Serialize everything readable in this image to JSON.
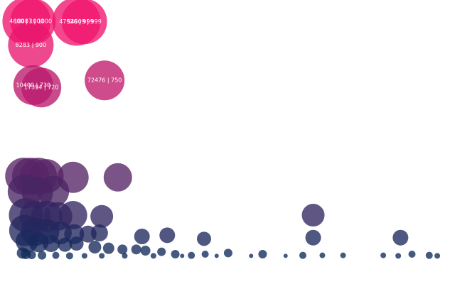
{
  "chart_data": {
    "type": "scatter",
    "title": "",
    "xlabel": "",
    "ylabel": "",
    "xlim": [
      0,
      370000
    ],
    "ylim": [
      0,
      1030
    ],
    "grid": false,
    "legend": "none",
    "color_scale": {
      "low": "#0c2a5a",
      "mid": "#5a2466",
      "high": "#f0156e"
    },
    "labeled_points": [
      {
        "x": 4600,
        "y": 1000,
        "label": "4600 | 1000",
        "size": 34
      },
      {
        "x": 10087,
        "y": 1000,
        "label": "10087 | 1000",
        "size": 32
      },
      {
        "x": 47926,
        "y": 999,
        "label": "47926 | 999",
        "size": 34
      },
      {
        "x": 54809,
        "y": 999,
        "label": "54809 | 999",
        "size": 32
      },
      {
        "x": 8283,
        "y": 900,
        "label": "8283 | 900",
        "size": 32
      },
      {
        "x": 10400,
        "y": 730,
        "label": "10400 | 730",
        "size": 28
      },
      {
        "x": 17394,
        "y": 720,
        "label": "17394 | 720",
        "size": 28
      },
      {
        "x": 72476,
        "y": 750,
        "label": "72476 | 750",
        "size": 28
      }
    ],
    "points": [
      {
        "x": 2000,
        "y": 345,
        "size": 26
      },
      {
        "x": 8000,
        "y": 345,
        "size": 26
      },
      {
        "x": 15000,
        "y": 345,
        "size": 26
      },
      {
        "x": 22000,
        "y": 345,
        "size": 24
      },
      {
        "x": 45000,
        "y": 340,
        "size": 22
      },
      {
        "x": 84000,
        "y": 340,
        "size": 20
      },
      {
        "x": 3000,
        "y": 280,
        "size": 24
      },
      {
        "x": 14000,
        "y": 275,
        "size": 22
      },
      {
        "x": 28000,
        "y": 280,
        "size": 22
      },
      {
        "x": 4000,
        "y": 180,
        "size": 24
      },
      {
        "x": 12000,
        "y": 175,
        "size": 22
      },
      {
        "x": 22000,
        "y": 175,
        "size": 22
      },
      {
        "x": 32000,
        "y": 175,
        "size": 20
      },
      {
        "x": 45000,
        "y": 180,
        "size": 20
      },
      {
        "x": 70000,
        "y": 175,
        "size": 16
      },
      {
        "x": 254000,
        "y": 180,
        "size": 16
      },
      {
        "x": 3000,
        "y": 115,
        "size": 22
      },
      {
        "x": 12000,
        "y": 110,
        "size": 20
      },
      {
        "x": 22000,
        "y": 110,
        "size": 18
      },
      {
        "x": 34000,
        "y": 105,
        "size": 16
      },
      {
        "x": 46000,
        "y": 100,
        "size": 14
      },
      {
        "x": 58000,
        "y": 100,
        "size": 12
      },
      {
        "x": 68000,
        "y": 105,
        "size": 12
      },
      {
        "x": 105000,
        "y": 90,
        "size": 11
      },
      {
        "x": 127000,
        "y": 95,
        "size": 11
      },
      {
        "x": 159000,
        "y": 80,
        "size": 10
      },
      {
        "x": 254000,
        "y": 85,
        "size": 11
      },
      {
        "x": 330000,
        "y": 85,
        "size": 11
      },
      {
        "x": 5000,
        "y": 70,
        "size": 16
      },
      {
        "x": 15000,
        "y": 65,
        "size": 14
      },
      {
        "x": 26000,
        "y": 60,
        "size": 12
      },
      {
        "x": 38000,
        "y": 55,
        "size": 10
      },
      {
        "x": 48000,
        "y": 60,
        "size": 10
      },
      {
        "x": 64000,
        "y": 45,
        "size": 9
      },
      {
        "x": 76000,
        "y": 40,
        "size": 8
      },
      {
        "x": 88000,
        "y": 35,
        "size": 7
      },
      {
        "x": 100000,
        "y": 35,
        "size": 7
      },
      {
        "x": 108000,
        "y": 30,
        "size": 7
      },
      {
        "x": 122000,
        "y": 25,
        "size": 6
      },
      {
        "x": 134000,
        "y": 15,
        "size": 6
      },
      {
        "x": 148000,
        "y": 10,
        "size": 5
      },
      {
        "x": 160000,
        "y": 15,
        "size": 5
      },
      {
        "x": 180000,
        "y": 20,
        "size": 6
      },
      {
        "x": 210000,
        "y": 15,
        "size": 6
      },
      {
        "x": 245000,
        "y": 10,
        "size": 5
      },
      {
        "x": 262000,
        "y": 10,
        "size": 4
      },
      {
        "x": 280000,
        "y": 10,
        "size": 4
      },
      {
        "x": 315000,
        "y": 10,
        "size": 4
      },
      {
        "x": 328000,
        "y": 8,
        "size": 4
      },
      {
        "x": 340000,
        "y": 15,
        "size": 5
      },
      {
        "x": 355000,
        "y": 10,
        "size": 5
      },
      {
        "x": 362000,
        "y": 8,
        "size": 4
      },
      {
        "x": 1000,
        "y": 20,
        "size": 8
      },
      {
        "x": 4000,
        "y": 15,
        "size": 7
      },
      {
        "x": 9000,
        "y": 12,
        "size": 6
      },
      {
        "x": 18000,
        "y": 10,
        "size": 6
      },
      {
        "x": 30000,
        "y": 10,
        "size": 5
      },
      {
        "x": 42000,
        "y": 8,
        "size": 5
      },
      {
        "x": 55000,
        "y": 8,
        "size": 4
      },
      {
        "x": 70000,
        "y": 8,
        "size": 4
      },
      {
        "x": 90000,
        "y": 8,
        "size": 4
      },
      {
        "x": 115000,
        "y": 8,
        "size": 4
      },
      {
        "x": 140000,
        "y": 8,
        "size": 3
      },
      {
        "x": 170000,
        "y": 8,
        "size": 3
      },
      {
        "x": 200000,
        "y": 8,
        "size": 3
      },
      {
        "x": 230000,
        "y": 8,
        "size": 3
      }
    ]
  }
}
